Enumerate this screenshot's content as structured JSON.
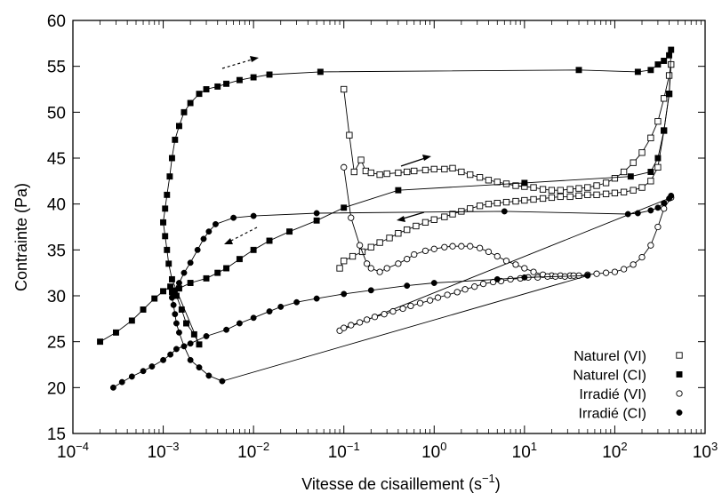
{
  "chart_data": {
    "type": "scatter",
    "title": "",
    "xlabel": "Vitesse de cisaillement (s",
    "xlabel_sup": "−1",
    "xlabel_close": ")",
    "ylabel": "Contrainte (Pa)",
    "xscale": "log",
    "xlim": [
      0.0001,
      1000
    ],
    "ylim": [
      15,
      60
    ],
    "x_ticks": [
      {
        "value": 0.0001,
        "base": "10",
        "exp": "−4"
      },
      {
        "value": 0.001,
        "base": "10",
        "exp": "−3"
      },
      {
        "value": 0.01,
        "base": "10",
        "exp": "−2"
      },
      {
        "value": 0.1,
        "base": "10",
        "exp": "−1"
      },
      {
        "value": 1,
        "base": "10",
        "exp": "0"
      },
      {
        "value": 10,
        "base": "10",
        "exp": "1"
      },
      {
        "value": 100,
        "base": "10",
        "exp": "2"
      },
      {
        "value": 1000,
        "base": "10",
        "exp": "3"
      }
    ],
    "y_ticks": [
      "15",
      "20",
      "25",
      "30",
      "35",
      "40",
      "45",
      "50",
      "55",
      "60"
    ],
    "grid": false,
    "legend_position": "bottom-right",
    "series": [
      {
        "name": "Naturel (VI)",
        "marker": "square-open",
        "color": "#000000",
        "points": [
          [
            0.1,
            52.5
          ],
          [
            0.115,
            47.5
          ],
          [
            0.13,
            43.5
          ],
          [
            0.155,
            44.8
          ],
          [
            0.175,
            43.6
          ],
          [
            0.2,
            43.4
          ],
          [
            0.25,
            43.2
          ],
          [
            0.3,
            43.3
          ],
          [
            0.4,
            43.4
          ],
          [
            0.5,
            43.5
          ],
          [
            0.6,
            43.6
          ],
          [
            0.8,
            43.7
          ],
          [
            1.0,
            43.8
          ],
          [
            1.3,
            43.8
          ],
          [
            1.6,
            43.9
          ],
          [
            2.0,
            43.5
          ],
          [
            2.5,
            43.2
          ],
          [
            3.2,
            42.9
          ],
          [
            4.0,
            42.6
          ],
          [
            5.0,
            42.4
          ],
          [
            6.3,
            42.2
          ],
          [
            8.0,
            42.0
          ],
          [
            10,
            41.9
          ],
          [
            12.6,
            41.8
          ],
          [
            16,
            41.6
          ],
          [
            20,
            41.5
          ],
          [
            25,
            41.5
          ],
          [
            32,
            41.6
          ],
          [
            40,
            41.7
          ],
          [
            50,
            41.8
          ],
          [
            63,
            42.0
          ],
          [
            80,
            42.3
          ],
          [
            100,
            42.8
          ],
          [
            126,
            43.5
          ],
          [
            160,
            44.5
          ],
          [
            200,
            45.6
          ],
          [
            250,
            47.2
          ],
          [
            300,
            49.0
          ],
          [
            350,
            51.5
          ],
          [
            400,
            54.0
          ],
          [
            420,
            55.2
          ],
          [
            400,
            52.0
          ],
          [
            350,
            48.0
          ],
          [
            300,
            44.0
          ],
          [
            250,
            42.5
          ],
          [
            200,
            41.8
          ],
          [
            160,
            41.5
          ],
          [
            126,
            41.3
          ],
          [
            100,
            41.2
          ],
          [
            80,
            41.1
          ],
          [
            63,
            41.0
          ],
          [
            50,
            41.0
          ],
          [
            40,
            40.9
          ],
          [
            32,
            40.8
          ],
          [
            25,
            40.8
          ],
          [
            20,
            40.7
          ],
          [
            16,
            40.6
          ],
          [
            12.6,
            40.5
          ],
          [
            10,
            40.4
          ],
          [
            8.0,
            40.3
          ],
          [
            6.3,
            40.2
          ],
          [
            5.0,
            40.1
          ],
          [
            4.0,
            40.0
          ],
          [
            3.2,
            39.8
          ],
          [
            2.5,
            39.5
          ],
          [
            2.0,
            39.2
          ],
          [
            1.6,
            38.9
          ],
          [
            1.3,
            38.6
          ],
          [
            1.0,
            38.3
          ],
          [
            0.8,
            38.0
          ],
          [
            0.63,
            37.6
          ],
          [
            0.5,
            37.2
          ],
          [
            0.4,
            36.8
          ],
          [
            0.32,
            36.3
          ],
          [
            0.25,
            35.8
          ],
          [
            0.2,
            35.3
          ],
          [
            0.16,
            34.8
          ],
          [
            0.125,
            34.3
          ],
          [
            0.1,
            33.8
          ],
          [
            0.09,
            33.0
          ]
        ]
      },
      {
        "name": "Naturel (CI)",
        "marker": "square-filled",
        "color": "#000000",
        "points": [
          [
            0.0002,
            25.0
          ],
          [
            0.0003,
            26.0
          ],
          [
            0.00045,
            27.3
          ],
          [
            0.0006,
            28.5
          ],
          [
            0.0008,
            29.7
          ],
          [
            0.001,
            30.5
          ],
          [
            0.0012,
            31.0
          ],
          [
            0.0014,
            30.0
          ],
          [
            0.0016,
            28.5
          ],
          [
            0.0018,
            27.0
          ],
          [
            0.0022,
            25.8
          ],
          [
            0.0025,
            24.7
          ],
          [
            0.00125,
            31.8
          ],
          [
            0.00115,
            33.5
          ],
          [
            0.0011,
            35.0
          ],
          [
            0.00105,
            36.5
          ],
          [
            0.001,
            38.0
          ],
          [
            0.00105,
            39.5
          ],
          [
            0.0011,
            41.0
          ],
          [
            0.00118,
            43.0
          ],
          [
            0.00125,
            45.0
          ],
          [
            0.00135,
            47.0
          ],
          [
            0.0015,
            48.5
          ],
          [
            0.0017,
            50.0
          ],
          [
            0.002,
            51.0
          ],
          [
            0.0025,
            52.0
          ],
          [
            0.003,
            52.5
          ],
          [
            0.004,
            52.8
          ],
          [
            0.005,
            53.1
          ],
          [
            0.007,
            53.5
          ],
          [
            0.01,
            53.8
          ],
          [
            0.015,
            54.1
          ],
          [
            0.055,
            54.4
          ],
          [
            40,
            54.6
          ],
          [
            180,
            54.4
          ],
          [
            250,
            54.6
          ],
          [
            300,
            55.2
          ],
          [
            350,
            55.6
          ],
          [
            400,
            56.2
          ],
          [
            420,
            56.8
          ],
          [
            400,
            52.0
          ],
          [
            350,
            48.0
          ],
          [
            300,
            45.0
          ],
          [
            250,
            43.5
          ],
          [
            150,
            43.0
          ],
          [
            10,
            42.3
          ],
          [
            0.4,
            41.5
          ],
          [
            0.1,
            39.6
          ],
          [
            0.05,
            38.2
          ],
          [
            0.025,
            37.0
          ],
          [
            0.015,
            36.0
          ],
          [
            0.01,
            35.0
          ],
          [
            0.007,
            34.0
          ],
          [
            0.005,
            33.0
          ],
          [
            0.004,
            32.5
          ],
          [
            0.003,
            31.9
          ],
          [
            0.002,
            31.4
          ],
          [
            0.0015,
            30.8
          ],
          [
            0.00125,
            30.4
          ]
        ]
      },
      {
        "name": "Irradié (VI)",
        "marker": "circle-open",
        "color": "#000000",
        "points": [
          [
            0.1,
            44.0
          ],
          [
            0.12,
            38.5
          ],
          [
            0.15,
            35.5
          ],
          [
            0.18,
            33.5
          ],
          [
            0.2,
            33.0
          ],
          [
            0.25,
            32.6
          ],
          [
            0.3,
            33.0
          ],
          [
            0.4,
            33.5
          ],
          [
            0.5,
            34.0
          ],
          [
            0.6,
            34.5
          ],
          [
            0.8,
            34.9
          ],
          [
            1.0,
            35.1
          ],
          [
            1.3,
            35.3
          ],
          [
            1.6,
            35.4
          ],
          [
            2.0,
            35.4
          ],
          [
            2.5,
            35.4
          ],
          [
            3.2,
            35.2
          ],
          [
            4.0,
            34.8
          ],
          [
            5.0,
            34.3
          ],
          [
            6.3,
            33.8
          ],
          [
            8.0,
            33.4
          ],
          [
            10,
            33.0
          ],
          [
            12.6,
            32.6
          ],
          [
            16,
            32.3
          ],
          [
            20,
            32.2
          ],
          [
            25,
            32.2
          ],
          [
            32,
            32.2
          ],
          [
            40,
            32.2
          ],
          [
            50,
            32.3
          ],
          [
            63,
            32.4
          ],
          [
            80,
            32.5
          ],
          [
            100,
            32.6
          ],
          [
            126,
            32.9
          ],
          [
            160,
            33.4
          ],
          [
            200,
            34.2
          ],
          [
            250,
            35.5
          ],
          [
            300,
            37.5
          ],
          [
            350,
            39.5
          ],
          [
            420,
            40.7
          ],
          [
            0.09,
            26.2
          ],
          [
            0.1,
            26.5
          ],
          [
            0.12,
            26.8
          ],
          [
            0.15,
            27.1
          ],
          [
            0.18,
            27.4
          ],
          [
            0.22,
            27.7
          ],
          [
            0.28,
            28.0
          ],
          [
            0.35,
            28.3
          ],
          [
            0.45,
            28.6
          ],
          [
            0.55,
            28.9
          ],
          [
            0.7,
            29.2
          ],
          [
            0.9,
            29.5
          ],
          [
            1.1,
            29.8
          ],
          [
            1.4,
            30.1
          ],
          [
            1.8,
            30.4
          ],
          [
            2.2,
            30.7
          ],
          [
            2.8,
            31.0
          ],
          [
            3.5,
            31.3
          ],
          [
            4.5,
            31.5
          ],
          [
            5.5,
            31.6
          ],
          [
            7.0,
            31.8
          ],
          [
            9.0,
            31.9
          ],
          [
            11,
            32.0
          ],
          [
            14,
            32.0
          ],
          [
            18,
            32.1
          ],
          [
            22,
            32.1
          ],
          [
            28,
            32.1
          ],
          [
            35,
            32.2
          ]
        ]
      },
      {
        "name": "Irradié (CI)",
        "marker": "circle-filled",
        "color": "#000000",
        "points": [
          [
            0.00028,
            20.0
          ],
          [
            0.00035,
            20.6
          ],
          [
            0.00045,
            21.2
          ],
          [
            0.0006,
            21.8
          ],
          [
            0.00075,
            22.3
          ],
          [
            0.001,
            23.0
          ],
          [
            0.0012,
            23.6
          ],
          [
            0.0014,
            24.2
          ],
          [
            0.002,
            24.8
          ],
          [
            0.003,
            25.6
          ],
          [
            0.005,
            26.3
          ],
          [
            0.007,
            27.0
          ],
          [
            0.01,
            27.6
          ],
          [
            0.015,
            28.3
          ],
          [
            0.02,
            28.8
          ],
          [
            0.03,
            29.3
          ],
          [
            0.05,
            29.7
          ],
          [
            0.1,
            30.2
          ],
          [
            0.2,
            30.6
          ],
          [
            0.5,
            31.1
          ],
          [
            1.0,
            31.4
          ],
          [
            5.0,
            31.8
          ],
          [
            10,
            32.0
          ],
          [
            50,
            32.2
          ],
          [
            0.0045,
            20.7
          ],
          [
            0.0032,
            21.3
          ],
          [
            0.0025,
            22.2
          ],
          [
            0.002,
            23.0
          ],
          [
            0.0017,
            24.5
          ],
          [
            0.0015,
            26.0
          ],
          [
            0.0014,
            27.0
          ],
          [
            0.00135,
            28.0
          ],
          [
            0.0013,
            29.0
          ],
          [
            0.00125,
            29.8
          ],
          [
            0.00135,
            30.6
          ],
          [
            0.0015,
            31.4
          ],
          [
            0.0017,
            32.5
          ],
          [
            0.002,
            33.6
          ],
          [
            0.0024,
            35.0
          ],
          [
            0.0028,
            36.2
          ],
          [
            0.0032,
            37.0
          ],
          [
            0.0038,
            37.8
          ],
          [
            0.006,
            38.5
          ],
          [
            0.01,
            38.7
          ],
          [
            0.05,
            39.0
          ],
          [
            6.0,
            39.2
          ],
          [
            140,
            38.9
          ],
          [
            180,
            39.0
          ],
          [
            250,
            39.3
          ],
          [
            300,
            39.6
          ],
          [
            350,
            40.1
          ],
          [
            400,
            40.6
          ],
          [
            420,
            40.9
          ]
        ]
      }
    ]
  }
}
